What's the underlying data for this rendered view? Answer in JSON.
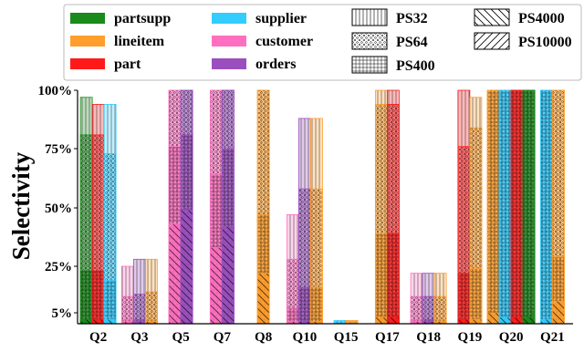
{
  "chart_data": {
    "type": "bar",
    "ylabel": "Selectivity",
    "ytick_labels": [
      "5%",
      "25%",
      "50%",
      "75%",
      "100%"
    ],
    "yticks": [
      5,
      25,
      50,
      75,
      100
    ],
    "ylim": [
      0,
      100
    ],
    "y_scale": "nonlinear (5% marker drawn near the baseline)",
    "categories": [
      "Q2",
      "Q3",
      "Q5",
      "Q7",
      "Q8",
      "Q10",
      "Q15",
      "Q17",
      "Q18",
      "Q19",
      "Q20",
      "Q21"
    ],
    "legend_tables": [
      {
        "name": "partsupp",
        "color": "#1a8a1a"
      },
      {
        "name": "lineitem",
        "color": "#ff9e2c"
      },
      {
        "name": "part",
        "color": "#ff1a1a"
      },
      {
        "name": "supplier",
        "color": "#33ccff"
      },
      {
        "name": "customer",
        "color": "#ff6fc0"
      },
      {
        "name": "orders",
        "color": "#9b4fbf"
      }
    ],
    "legend_prefilters": [
      {
        "name": "PS32",
        "pattern": "vertical-lines"
      },
      {
        "name": "PS64",
        "pattern": "dots"
      },
      {
        "name": "PS400",
        "pattern": "grid"
      },
      {
        "name": "PS4000",
        "pattern": "back-diagonal"
      },
      {
        "name": "PS10000",
        "pattern": "forward-diagonal"
      }
    ],
    "legend_placement": "top",
    "groups": [
      {
        "query": "Q2",
        "bars": [
          {
            "table": "partsupp",
            "levels": [
              97,
              81,
              23,
              2
            ]
          },
          {
            "table": "part",
            "levels": [
              94,
              81,
              23,
              2
            ]
          },
          {
            "table": "supplier",
            "levels": [
              94,
              73,
              19,
              2
            ]
          }
        ]
      },
      {
        "query": "Q3",
        "bars": [
          {
            "table": "customer",
            "levels": [
              25,
              12,
              2,
              1
            ]
          },
          {
            "table": "orders",
            "levels": [
              28,
              13,
              2,
              1
            ]
          },
          {
            "table": "lineitem",
            "levels": [
              28,
              14,
              2,
              1
            ]
          }
        ]
      },
      {
        "query": "Q5",
        "bars": [
          {
            "table": "customer",
            "levels": [
              100,
              100,
              76,
              43
            ]
          },
          {
            "table": "orders",
            "levels": [
              100,
              100,
              81,
              49
            ]
          }
        ]
      },
      {
        "query": "Q7",
        "bars": [
          {
            "table": "customer",
            "levels": [
              100,
              100,
              64,
              33
            ]
          },
          {
            "table": "orders",
            "levels": [
              100,
              100,
              75,
              42
            ]
          }
        ]
      },
      {
        "query": "Q8",
        "bars": [
          {
            "table": "lineitem",
            "levels": [
              100,
              100,
              47,
              22
            ]
          }
        ]
      },
      {
        "query": "Q10",
        "bars": [
          {
            "table": "customer",
            "levels": [
              47,
              28,
              7,
              1
            ]
          },
          {
            "table": "orders",
            "levels": [
              88,
              58,
              16,
              1
            ]
          },
          {
            "table": "lineitem",
            "levels": [
              88,
              58,
              16,
              1
            ]
          }
        ]
      },
      {
        "query": "Q15",
        "bars": [
          {
            "table": "supplier",
            "levels": [
              1.5,
              1,
              0.5,
              0.2
            ]
          },
          {
            "table": "lineitem",
            "levels": [
              1.5,
              1,
              0.5,
              0.2
            ]
          }
        ]
      },
      {
        "query": "Q17",
        "bars": [
          {
            "table": "lineitem",
            "levels": [
              100,
              94,
              39,
              3
            ]
          },
          {
            "table": "part",
            "levels": [
              100,
              94,
              39,
              3
            ]
          }
        ]
      },
      {
        "query": "Q18",
        "bars": [
          {
            "table": "customer",
            "levels": [
              22,
              12,
              2,
              1
            ]
          },
          {
            "table": "orders",
            "levels": [
              22,
              12,
              2,
              1
            ]
          },
          {
            "table": "lineitem",
            "levels": [
              22,
              12,
              2,
              1
            ]
          }
        ]
      },
      {
        "query": "Q19",
        "bars": [
          {
            "table": "part",
            "levels": [
              100,
              76,
              22,
              2
            ]
          },
          {
            "table": "lineitem",
            "levels": [
              97,
              84,
              24,
              2
            ]
          }
        ]
      },
      {
        "query": "Q20",
        "bars": [
          {
            "table": "lineitem",
            "levels": [
              100,
              100,
              100,
              5
            ]
          },
          {
            "table": "supplier",
            "levels": [
              100,
              100,
              100,
              3
            ]
          },
          {
            "table": "part",
            "levels": [
              100,
              100,
              100,
              3
            ]
          },
          {
            "table": "partsupp",
            "levels": [
              100,
              100,
              100,
              3
            ]
          }
        ]
      },
      {
        "query": "Q21",
        "bars": [
          {
            "table": "supplier",
            "levels": [
              100,
              100,
              100,
              2
            ]
          },
          {
            "table": "lineitem",
            "levels": [
              100,
              100,
              29,
              10
            ]
          }
        ]
      }
    ]
  }
}
